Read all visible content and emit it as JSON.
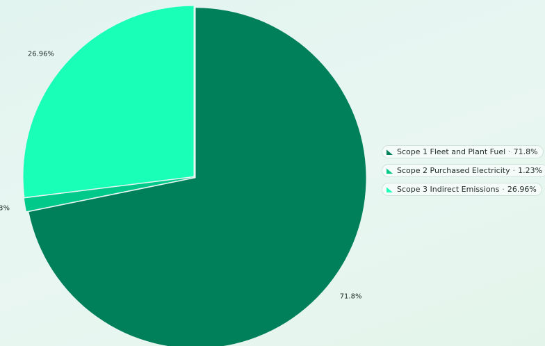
{
  "chart_data": {
    "type": "pie",
    "title": "",
    "legend_position": "right",
    "start_angle_deg": 0,
    "direction": "clockwise",
    "slices": [
      {
        "name": "Scope 1 Fleet and Plant Fuel",
        "value": 71.8,
        "label": "71.8%",
        "color": "#00805a"
      },
      {
        "name": "Scope 2 Purchased Electricity",
        "value": 1.23,
        "label": "1.23%",
        "color": "#00c98a"
      },
      {
        "name": "Scope 3 Indirect Emissions",
        "value": 26.96,
        "label": "26.96%",
        "color": "#1affb8"
      }
    ]
  },
  "legend": {
    "items": [
      {
        "name": "Scope 1 Fleet and Plant Fuel",
        "value_text": "71.8%",
        "color": "#00805a"
      },
      {
        "name": "Scope 2 Purchased Electricity",
        "value_text": "1.23%",
        "color": "#00c98a"
      },
      {
        "name": "Scope 3 Indirect Emissions",
        "value_text": "26.96%",
        "color": "#1affb8"
      }
    ],
    "separator": "·"
  }
}
